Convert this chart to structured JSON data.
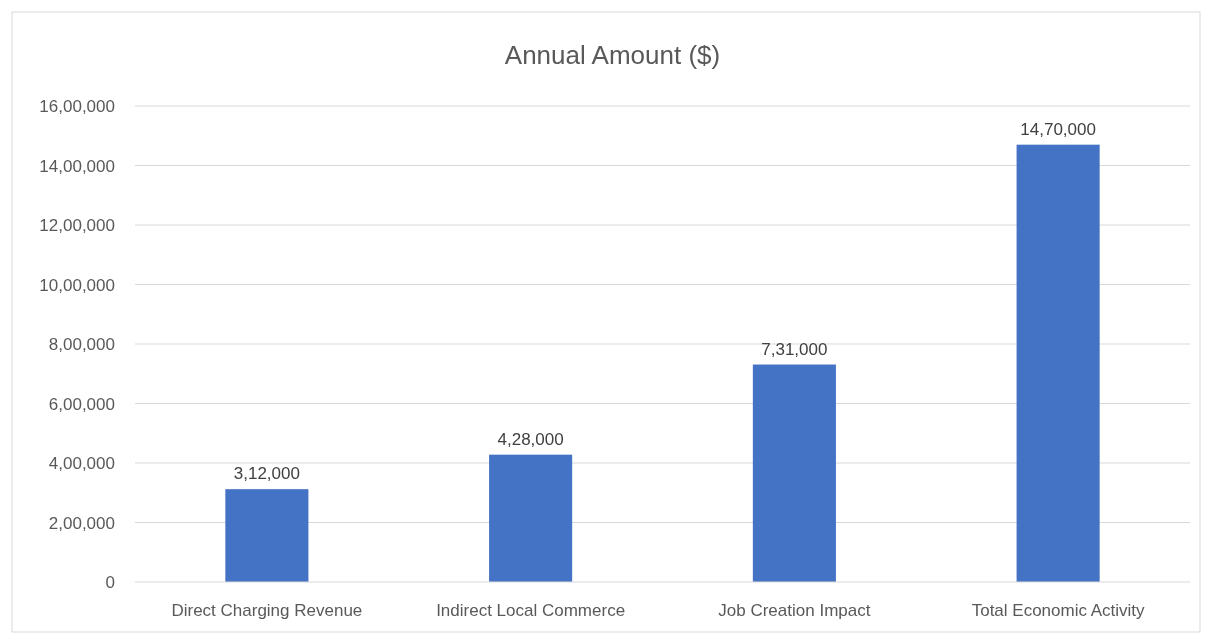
{
  "chart_data": {
    "type": "bar",
    "title": "Annual Amount ($)",
    "categories": [
      "Direct Charging Revenue",
      "Indirect Local Commerce",
      "Job Creation Impact",
      "Total Economic Activity"
    ],
    "values": [
      312000,
      428000,
      731000,
      1470000
    ],
    "value_labels": [
      "3,12,000",
      "4,28,000",
      "7,31,000",
      "14,70,000"
    ],
    "color": "#4472c4",
    "ylim": [
      0,
      1600000
    ],
    "yticks": [
      0,
      {
        "value": 200000,
        "label": "2,00,000"
      },
      {
        "value": 400000,
        "label": "4,00,000"
      },
      {
        "value": 600000,
        "label": "6,00,000"
      },
      {
        "value": 800000,
        "label": "8,00,000"
      },
      {
        "value": 1000000,
        "label": "10,00,000"
      },
      {
        "value": 1200000,
        "label": "12,00,000"
      },
      {
        "value": 1400000,
        "label": "14,00,000"
      },
      {
        "value": 1600000,
        "label": "16,00,000"
      }
    ],
    "grid": true
  }
}
